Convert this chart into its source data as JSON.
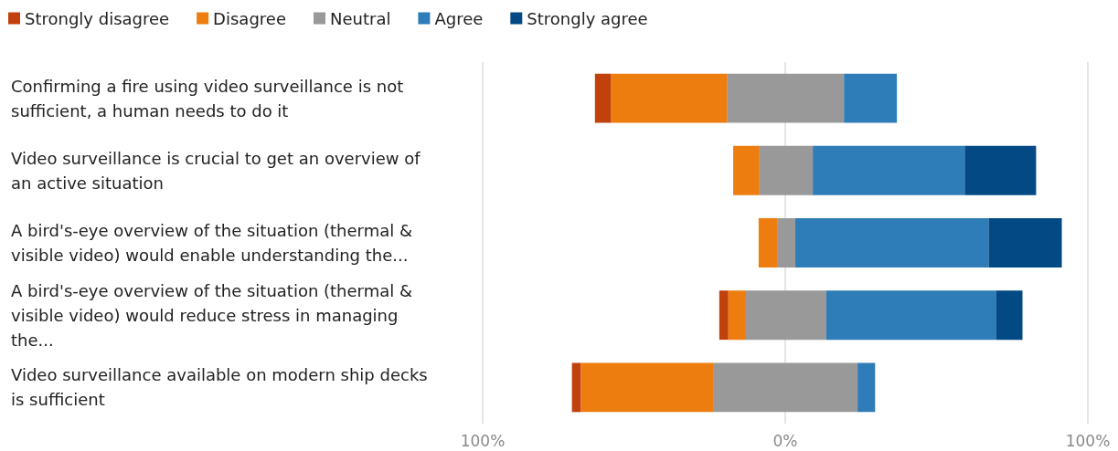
{
  "chart_data": {
    "type": "bar",
    "orientation": "horizontal",
    "categories": [
      "Confirming a fire using video surveillance is not sufficient, a human needs to do it",
      "Video surveillance is crucial to get an overview of an active situation",
      "A bird's-eye overview of the situation (thermal & visible video) would enable understanding the...",
      "A bird's-eye overview of the situation (thermal & visible video) would reduce stress in managing the...",
      "Video surveillance available on modern ship decks is sufficient"
    ],
    "series": [
      {
        "name": "Strongly disagree",
        "color": "#c0410c",
        "base": [
          -62.9,
          null,
          null,
          -21.8,
          -70.5
        ],
        "values": [
          5.4,
          null,
          null,
          3,
          3
        ]
      },
      {
        "name": "Disagree",
        "color": "#ed7d0e",
        "base": [
          -57.5,
          -17.2,
          -8.8,
          -18.8,
          -67.5
        ],
        "values": [
          38.4,
          8.7,
          6.1,
          5.8,
          43.9
        ]
      },
      {
        "name": "Neutral",
        "color": "#999999",
        "base": [
          -19.1,
          -8.5,
          -2.7,
          -13,
          -23.6
        ],
        "values": [
          38.5,
          17.6,
          6,
          26.6,
          47.5
        ]
      },
      {
        "name": "Agree",
        "color": "#2e7cb8",
        "base": [
          19.4,
          9.1,
          3.3,
          13.6,
          23.9
        ],
        "values": [
          17.5,
          50.2,
          63.9,
          56,
          5.8
        ]
      },
      {
        "name": "Strongly agree",
        "color": "#034a84",
        "base": [
          null,
          59.3,
          67.2,
          69.6,
          null
        ],
        "values": [
          null,
          23.6,
          24.2,
          8.8,
          null
        ]
      }
    ],
    "xlim": [
      -100,
      100
    ],
    "xticks": [
      {
        "value": -100,
        "label": "100%"
      },
      {
        "value": 0,
        "label": "0%"
      },
      {
        "value": 100,
        "label": "100%"
      }
    ],
    "grid": "x",
    "legend": "top left"
  }
}
